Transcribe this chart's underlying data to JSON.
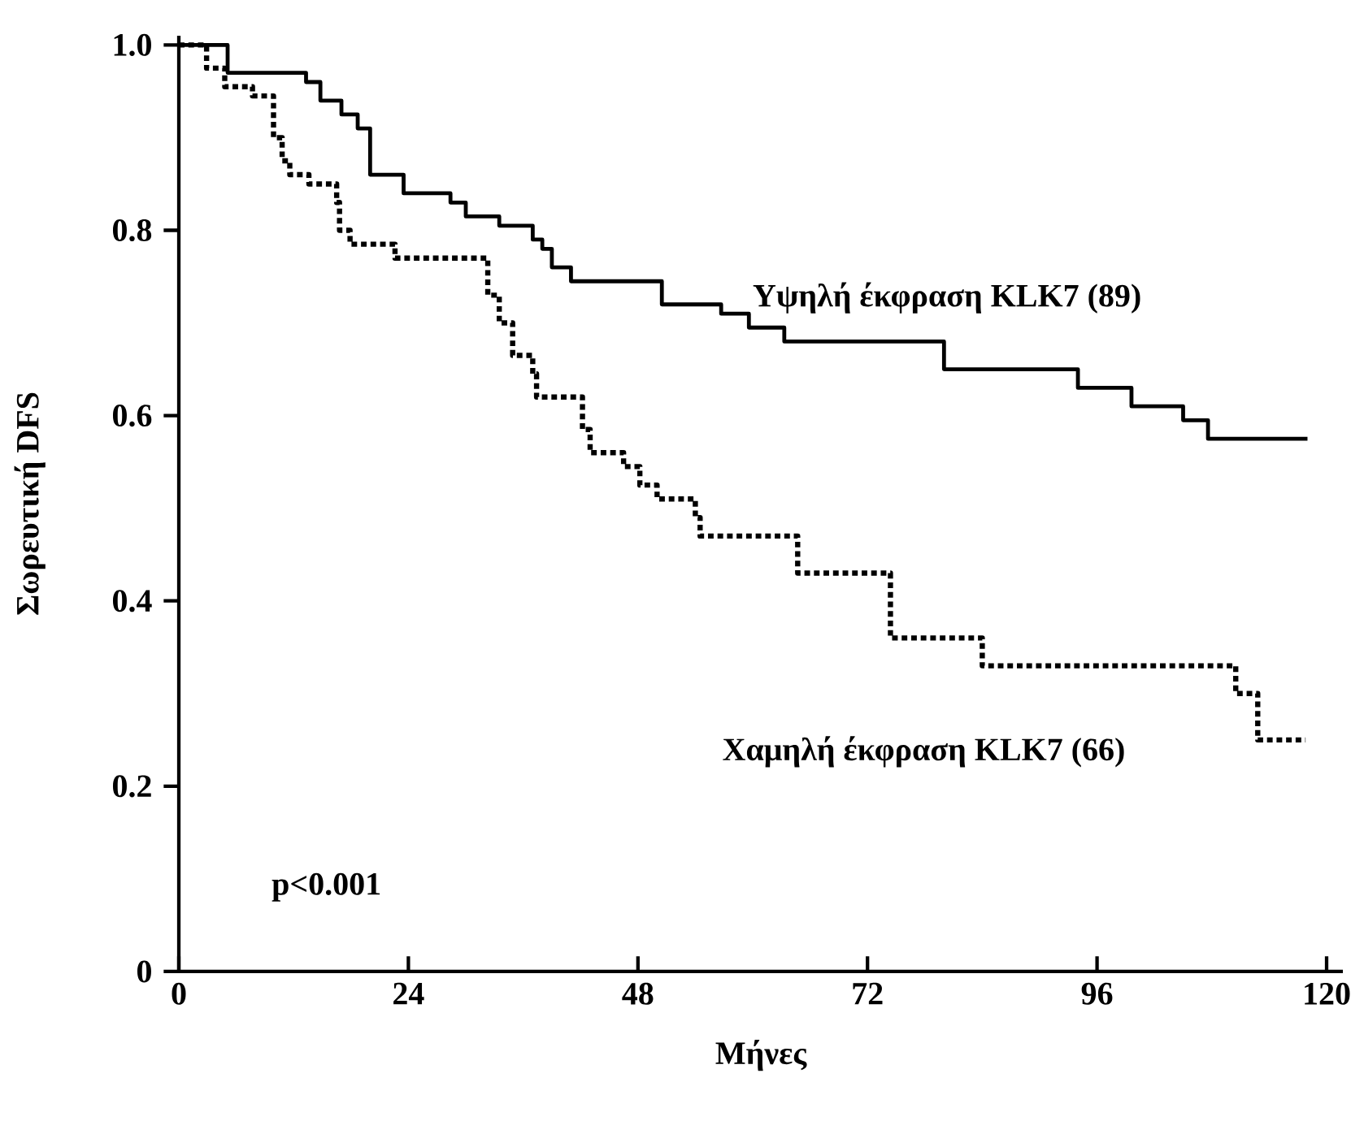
{
  "chart_data": {
    "type": "step",
    "xlabel": "Μήνες",
    "ylabel": "Σωρευτική DFS",
    "xlim": [
      0,
      121.7
    ],
    "ylim": [
      0,
      1.01
    ],
    "xticks": [
      0,
      24,
      48,
      72,
      96,
      120
    ],
    "yticks": [
      0,
      0.2,
      0.4,
      0.6,
      0.8,
      {
        "value": 1,
        "label": "1.0"
      }
    ],
    "series": [
      {
        "name": "Υψηλή έκφραση KLK7 (89)",
        "color": "#000000",
        "line_style": "solid",
        "x": [
          0,
          5.1,
          13.3,
          14.8,
          17,
          18.7,
          20,
          23.5,
          28.4,
          30,
          33.5,
          37,
          38,
          39,
          41,
          50.5,
          56.7,
          59.6,
          63.3,
          80,
          94,
          99.6,
          105,
          107.6,
          118
        ],
        "values": [
          1.0,
          0.97,
          0.96,
          0.94,
          0.925,
          0.91,
          0.86,
          0.84,
          0.83,
          0.815,
          0.805,
          0.79,
          0.78,
          0.76,
          0.745,
          0.72,
          0.71,
          0.695,
          0.68,
          0.65,
          0.63,
          0.61,
          0.595,
          0.575,
          0.575
        ]
      },
      {
        "name": "Χαμηλή έκφραση KLK7 (66)",
        "color": "#000000",
        "line_style": "dotted",
        "x": [
          0,
          2.9,
          4.8,
          7.7,
          9.9,
          10.8,
          11.6,
          13.6,
          16.5,
          16.8,
          17.9,
          22.6,
          32.3,
          33.5,
          34.9,
          37,
          37.4,
          42.2,
          43,
          46.5,
          48.2,
          50,
          54,
          54.5,
          64.7,
          74.4,
          84,
          110.5,
          112.8,
          117.8
        ],
        "values": [
          1.0,
          0.975,
          0.955,
          0.945,
          0.9,
          0.875,
          0.86,
          0.85,
          0.83,
          0.8,
          0.785,
          0.77,
          0.73,
          0.7,
          0.665,
          0.645,
          0.62,
          0.585,
          0.56,
          0.545,
          0.525,
          0.51,
          0.49,
          0.47,
          0.43,
          0.36,
          0.33,
          0.3,
          0.25,
          0.25
        ]
      }
    ],
    "annotations": [
      "p<0.001"
    ]
  }
}
